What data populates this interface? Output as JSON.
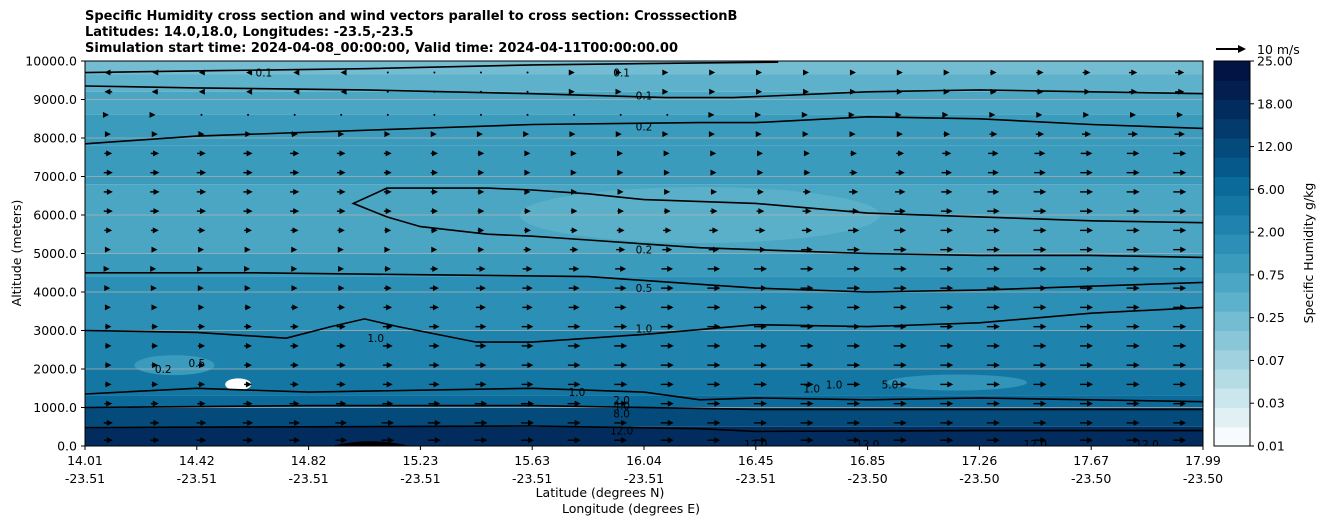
{
  "title_lines": [
    "Specific Humidity cross section and wind vectors parallel to cross section: CrosssectionB",
    "Latitudes: 14.0,18.0, Longitudes: -23.5,-23.5",
    "Simulation start time: 2024-04-08_00:00:00, Valid time: 2024-04-11T00:00:00.00"
  ],
  "quiver_key": "10 m/s",
  "colors": {
    "levels": [
      "#f7fbfd",
      "#e1f0f3",
      "#cbe6ec",
      "#b5dbe5",
      "#9fd1df",
      "#89c6d8",
      "#73bcd1",
      "#5eb1ca",
      "#4aa6c3",
      "#3a9bbd",
      "#2c90b6",
      "#1f84ad",
      "#1477a3",
      "#0b6a99",
      "#05598b",
      "#044a7b",
      "#033b6c",
      "#022c5d",
      "#021f4f",
      "#021444",
      "#020c3a"
    ],
    "contour": "#000000",
    "grid": "#b0b0b0"
  },
  "chart_data": {
    "type": "contourf",
    "title": "Specific Humidity cross section and wind vectors parallel to cross section: CrosssectionB",
    "xlabel": [
      "Latitude (degrees N)",
      "Longitude (degrees E)"
    ],
    "ylabel": "Altitude (meters)",
    "ylim": [
      0,
      10000
    ],
    "grid": "horizontal",
    "x_ticks": [
      {
        "lat": "14.01",
        "lon": "-23.51"
      },
      {
        "lat": "14.42",
        "lon": "-23.51"
      },
      {
        "lat": "14.82",
        "lon": "-23.51"
      },
      {
        "lat": "15.23",
        "lon": "-23.51"
      },
      {
        "lat": "15.63",
        "lon": "-23.51"
      },
      {
        "lat": "16.04",
        "lon": "-23.51"
      },
      {
        "lat": "16.45",
        "lon": "-23.51"
      },
      {
        "lat": "16.85",
        "lon": "-23.50"
      },
      {
        "lat": "17.26",
        "lon": "-23.50"
      },
      {
        "lat": "17.67",
        "lon": "-23.50"
      },
      {
        "lat": "17.99",
        "lon": "-23.50"
      }
    ],
    "y_ticks": [
      "0.0",
      "1000.0",
      "2000.0",
      "3000.0",
      "4000.0",
      "5000.0",
      "6000.0",
      "7000.0",
      "8000.0",
      "9000.0",
      "10000.0"
    ],
    "y_values": [
      0,
      1000,
      2000,
      3000,
      4000,
      5000,
      6000,
      7000,
      8000,
      9000,
      10000
    ],
    "colorbar": {
      "label": "Specific Humidity g/kg",
      "ticks": [
        "0.01",
        "0.03",
        "0.07",
        "0.25",
        "0.75",
        "2.00",
        "6.00",
        "12.00",
        "18.00",
        "25.00"
      ]
    },
    "contour_lines": [
      {
        "level": "0.1",
        "x": [
          0.0,
          0.12,
          0.25,
          0.4,
          0.55,
          0.62
        ],
        "y": [
          9700,
          9750,
          9800,
          9900,
          9950,
          9970
        ]
      },
      {
        "level": "0.1",
        "x": [
          0.0,
          0.1,
          0.25,
          0.4,
          0.52,
          0.58,
          0.7,
          0.8,
          0.9,
          1.0
        ],
        "y": [
          9350,
          9300,
          9250,
          9150,
          9050,
          9050,
          9200,
          9250,
          9200,
          9150
        ]
      },
      {
        "level": "0.2",
        "x": [
          0.0,
          0.1,
          0.25,
          0.4,
          0.55,
          0.6,
          0.7,
          0.8,
          0.9,
          1.0
        ],
        "y": [
          7850,
          8050,
          8200,
          8350,
          8400,
          8400,
          8550,
          8500,
          8350,
          8250
        ]
      },
      {
        "level": "0.2",
        "x": [
          1.0,
          0.9,
          0.8,
          0.7,
          0.6,
          0.5,
          0.45,
          0.4,
          0.36,
          0.27,
          0.24,
          0.27,
          0.3,
          0.36,
          0.4,
          0.45,
          0.5,
          0.55,
          0.6,
          0.7,
          0.8,
          0.9,
          1.0
        ],
        "y": [
          5800,
          5850,
          5950,
          6050,
          6300,
          6400,
          6550,
          6650,
          6700,
          6700,
          6300,
          5950,
          5700,
          5500,
          5450,
          5350,
          5250,
          5150,
          5100,
          5000,
          4950,
          4950,
          4900
        ]
      },
      {
        "level": "0.5",
        "x": [
          0.0,
          0.15,
          0.3,
          0.45,
          0.55,
          0.6,
          0.7,
          0.8,
          0.9,
          1.0
        ],
        "y": [
          4500,
          4500,
          4450,
          4400,
          4200,
          4100,
          4000,
          4050,
          4150,
          4250
        ]
      },
      {
        "level": "1.0",
        "x": [
          0.0,
          0.1,
          0.18,
          0.22,
          0.25,
          0.28,
          0.35,
          0.4,
          0.5,
          0.6,
          0.7,
          0.8,
          0.9,
          1.0
        ],
        "y": [
          3000,
          2950,
          2800,
          3100,
          3300,
          3100,
          2700,
          2700,
          2900,
          3150,
          3100,
          3200,
          3450,
          3600
        ]
      },
      {
        "level": "2.0",
        "x": [
          0.0,
          0.1,
          0.2,
          0.3,
          0.4,
          0.5,
          0.55,
          0.6,
          0.7,
          0.8,
          0.9,
          1.0
        ],
        "y": [
          1350,
          1500,
          1400,
          1450,
          1500,
          1400,
          1200,
          1250,
          1200,
          1250,
          1200,
          1150
        ]
      },
      {
        "level": "8.0",
        "x": [
          0.0,
          0.2,
          0.4,
          0.6,
          0.8,
          1.0
        ],
        "y": [
          1000,
          1050,
          1050,
          950,
          950,
          950
        ]
      },
      {
        "level": "12.0",
        "x": [
          0.0,
          0.2,
          0.4,
          0.55,
          0.6,
          0.8,
          1.0
        ],
        "y": [
          480,
          500,
          520,
          450,
          380,
          400,
          400
        ]
      }
    ],
    "contour_labels": [
      {
        "text": "0.1",
        "x": 0.16,
        "y": 9700
      },
      {
        "text": "0.1",
        "x": 0.48,
        "y": 9700
      },
      {
        "text": "0.1",
        "x": 0.5,
        "y": 9100
      },
      {
        "text": "0.2",
        "x": 0.5,
        "y": 8300
      },
      {
        "text": "0.2",
        "x": 0.5,
        "y": 5100
      },
      {
        "text": "0.5",
        "x": 0.5,
        "y": 4100
      },
      {
        "text": "1.0",
        "x": 0.5,
        "y": 3050
      },
      {
        "text": "1.0",
        "x": 0.26,
        "y": 2800
      },
      {
        "text": "0.5",
        "x": 0.1,
        "y": 2150
      },
      {
        "text": "0.2",
        "x": 0.07,
        "y": 2000
      },
      {
        "text": "2.0",
        "x": 0.48,
        "y": 1200
      },
      {
        "text": "4.0",
        "x": 0.48,
        "y": 1050
      },
      {
        "text": "8.0",
        "x": 0.48,
        "y": 850
      },
      {
        "text": "12.0",
        "x": 0.48,
        "y": 400
      },
      {
        "text": "1.0",
        "x": 0.44,
        "y": 1400
      },
      {
        "text": "1.0",
        "x": 0.65,
        "y": 1500
      },
      {
        "text": "1.0",
        "x": 0.67,
        "y": 1600
      },
      {
        "text": "5.0",
        "x": 0.72,
        "y": 1600
      },
      {
        "text": "12.0",
        "x": 0.6,
        "y": 50
      },
      {
        "text": "12.0",
        "x": 0.7,
        "y": 50
      },
      {
        "text": "12.0",
        "x": 0.85,
        "y": 50
      },
      {
        "text": "12.0",
        "x": 0.95,
        "y": 50
      }
    ],
    "wind_rows": [
      {
        "altitude": 9700,
        "u": [
          -3,
          -2,
          -2,
          -1.5,
          -1,
          -0.5,
          -0.3,
          0,
          0.2,
          0.3,
          0.5,
          0.6,
          0.8,
          1,
          1.2,
          1.5,
          1.8,
          2,
          2.2,
          2.5,
          2.8,
          3,
          3.2,
          3.5
        ]
      },
      {
        "altitude": 9200,
        "u": [
          -3,
          -2.5,
          -2,
          -1.5,
          -1,
          -0.5,
          -0.3,
          0,
          0.2,
          0.3,
          0.5,
          0.6,
          0.8,
          1,
          1.2,
          1.5,
          1.8,
          2,
          2.2,
          2.5,
          2.8,
          3,
          3.2,
          3.5
        ]
      },
      {
        "altitude": 8600,
        "u": [
          0.5,
          0.5,
          0.3,
          0.3,
          0.2,
          0.2,
          0.1,
          0.1,
          0.1,
          0.1,
          0.2,
          0.3,
          0.3,
          0.4,
          0.5,
          0.6,
          0.8,
          1,
          1.2,
          1.5,
          1.8,
          2,
          2.2,
          2.5
        ]
      },
      {
        "altitude": 8100,
        "u": [
          2,
          2.2,
          2.3,
          2.5,
          2.5,
          2.3,
          2,
          1.8,
          1.5,
          1.2,
          1,
          0.8,
          0.8,
          0.8,
          1,
          1.2,
          1.5,
          2,
          2.5,
          3,
          3.2,
          3.5,
          3.8,
          4
        ]
      },
      {
        "altitude": 7600,
        "u": [
          3,
          3.2,
          3.3,
          3.5,
          3.5,
          3.3,
          3,
          2.8,
          2.5,
          2.2,
          2,
          1.8,
          1.8,
          1.8,
          2,
          2.2,
          2.5,
          3,
          3.5,
          4,
          4.2,
          4.5,
          4.8,
          5
        ]
      },
      {
        "altitude": 7100,
        "u": [
          3.5,
          3.5,
          3.6,
          3.6,
          3.5,
          3.3,
          3,
          2.8,
          2.5,
          2.2,
          2,
          2,
          2,
          2,
          2.2,
          2.5,
          3,
          3.5,
          4,
          4.2,
          4.5,
          4.8,
          5,
          5
        ]
      },
      {
        "altitude": 6600,
        "u": [
          3.5,
          3.6,
          3.6,
          3.6,
          3.5,
          3.3,
          3,
          2.8,
          2.5,
          2.2,
          2.2,
          2.2,
          2.2,
          2.4,
          2.6,
          3,
          3.5,
          4,
          4.3,
          4.5,
          4.8,
          5,
          5,
          5
        ]
      },
      {
        "altitude": 6100,
        "u": [
          3.5,
          3.5,
          3.5,
          3.5,
          3.5,
          3.3,
          3,
          2.8,
          2.6,
          2.5,
          2.5,
          2.5,
          2.6,
          2.8,
          3,
          3.5,
          4,
          4.3,
          4.5,
          4.8,
          5,
          5,
          5,
          5
        ]
      },
      {
        "altitude": 5600,
        "u": [
          3,
          3,
          3,
          3,
          3,
          2.8,
          2.6,
          2.5,
          2.5,
          2.6,
          2.8,
          3,
          3.2,
          3.5,
          3.8,
          4,
          4.3,
          4.5,
          4.8,
          5,
          5,
          5,
          5,
          5
        ]
      },
      {
        "altitude": 5100,
        "u": [
          2,
          2,
          2,
          2,
          2,
          2,
          2,
          2.2,
          2.5,
          3,
          3.2,
          3.5,
          3.8,
          4,
          4.2,
          4.5,
          4.8,
          5,
          5,
          5,
          5,
          5,
          5,
          5
        ]
      },
      {
        "altitude": 4600,
        "u": [
          1,
          1,
          1.2,
          1.5,
          2,
          2.2,
          2.5,
          3,
          3.5,
          3.8,
          4,
          4.2,
          4.5,
          4.8,
          5,
          5,
          5,
          5,
          5,
          5,
          5,
          5,
          5,
          5
        ]
      },
      {
        "altitude": 4100,
        "u": [
          1.5,
          1.5,
          1.8,
          2,
          2.2,
          2.5,
          3,
          3.5,
          3.8,
          4,
          4.2,
          4.5,
          4.8,
          5,
          5,
          5,
          5,
          5,
          5,
          5,
          5,
          5,
          5,
          5
        ]
      },
      {
        "altitude": 3600,
        "u": [
          2,
          2,
          2.2,
          2.5,
          2.8,
          3,
          3.3,
          3.5,
          3.8,
          4,
          4.2,
          4.5,
          4.8,
          5,
          5,
          5,
          5,
          5,
          5,
          5,
          5,
          5,
          5,
          5
        ]
      },
      {
        "altitude": 3100,
        "u": [
          2.5,
          2.5,
          2.8,
          3,
          3.2,
          3.5,
          3.8,
          4,
          4.2,
          4.5,
          4.8,
          5,
          5,
          5,
          5,
          5,
          5,
          5,
          5,
          5,
          5,
          5,
          5,
          5
        ]
      },
      {
        "altitude": 2600,
        "u": [
          2.5,
          2.5,
          2.8,
          3,
          3.2,
          3.5,
          3.8,
          4,
          4.2,
          4.5,
          4.8,
          5,
          5,
          5,
          5,
          5,
          5,
          5,
          5,
          5,
          5,
          5,
          5,
          5
        ]
      },
      {
        "altitude": 2100,
        "u": [
          2.5,
          2.5,
          2.8,
          3,
          3.2,
          3.5,
          3.8,
          4,
          4.2,
          4.5,
          4.8,
          5,
          5,
          5,
          5,
          5,
          5,
          5,
          5,
          5,
          5,
          5,
          5,
          5
        ]
      },
      {
        "altitude": 1600,
        "u": [
          2.5,
          2.5,
          2.8,
          3,
          3.2,
          3.5,
          3.8,
          4,
          4.2,
          4.5,
          4.8,
          5,
          5,
          5,
          5,
          5,
          5,
          5,
          5,
          5,
          5,
          5,
          5,
          5
        ]
      },
      {
        "altitude": 1100,
        "u": [
          3,
          3,
          3.2,
          3.5,
          3.8,
          4,
          4.2,
          4.5,
          4.8,
          5,
          5,
          5,
          5,
          5,
          5,
          5,
          5,
          5,
          5,
          5,
          5,
          5,
          5,
          5
        ]
      },
      {
        "altitude": 600,
        "u": [
          3.5,
          3.5,
          3.8,
          4,
          4.2,
          4.5,
          4.8,
          5,
          5,
          5,
          5,
          5,
          5,
          5,
          5,
          5,
          5,
          5,
          5,
          5,
          5,
          5,
          5,
          5
        ]
      },
      {
        "altitude": 150,
        "u": [
          3.5,
          3.5,
          3.8,
          4,
          4.2,
          4.5,
          4.8,
          5,
          5,
          5,
          5,
          5,
          5,
          5,
          5,
          5,
          5,
          5,
          5,
          5,
          5,
          5,
          5,
          5
        ]
      }
    ]
  }
}
